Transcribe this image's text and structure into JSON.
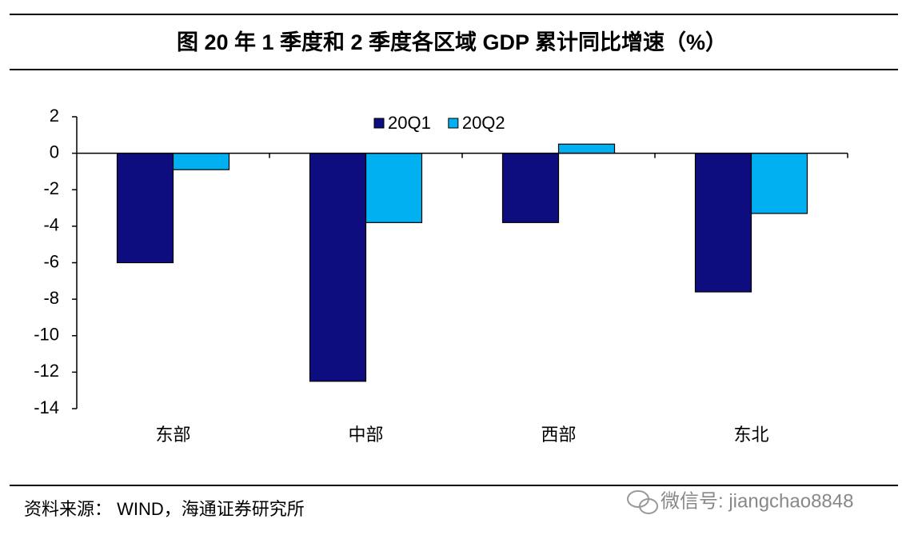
{
  "chart_data": {
    "type": "bar",
    "title": "图  20 年 1 季度和 2 季度各区域 GDP 累计同比增速（%）",
    "categories": [
      "东部",
      "中部",
      "西部",
      "东北"
    ],
    "series": [
      {
        "name": "20Q1",
        "color": "#0d0d80",
        "values": [
          -6.0,
          -12.5,
          -3.8,
          -7.6
        ]
      },
      {
        "name": "20Q2",
        "color": "#00b0f0",
        "values": [
          -0.9,
          -3.8,
          0.5,
          -3.3
        ]
      }
    ],
    "ylim": [
      -14,
      2
    ],
    "yticks": [
      2,
      0,
      -2,
      -4,
      -6,
      -8,
      -10,
      -12,
      -14
    ],
    "legend": "top",
    "grid": false
  },
  "source": "资料来源： WIND，海通证券研究所",
  "watermark": "微信号: jiangchao8848"
}
